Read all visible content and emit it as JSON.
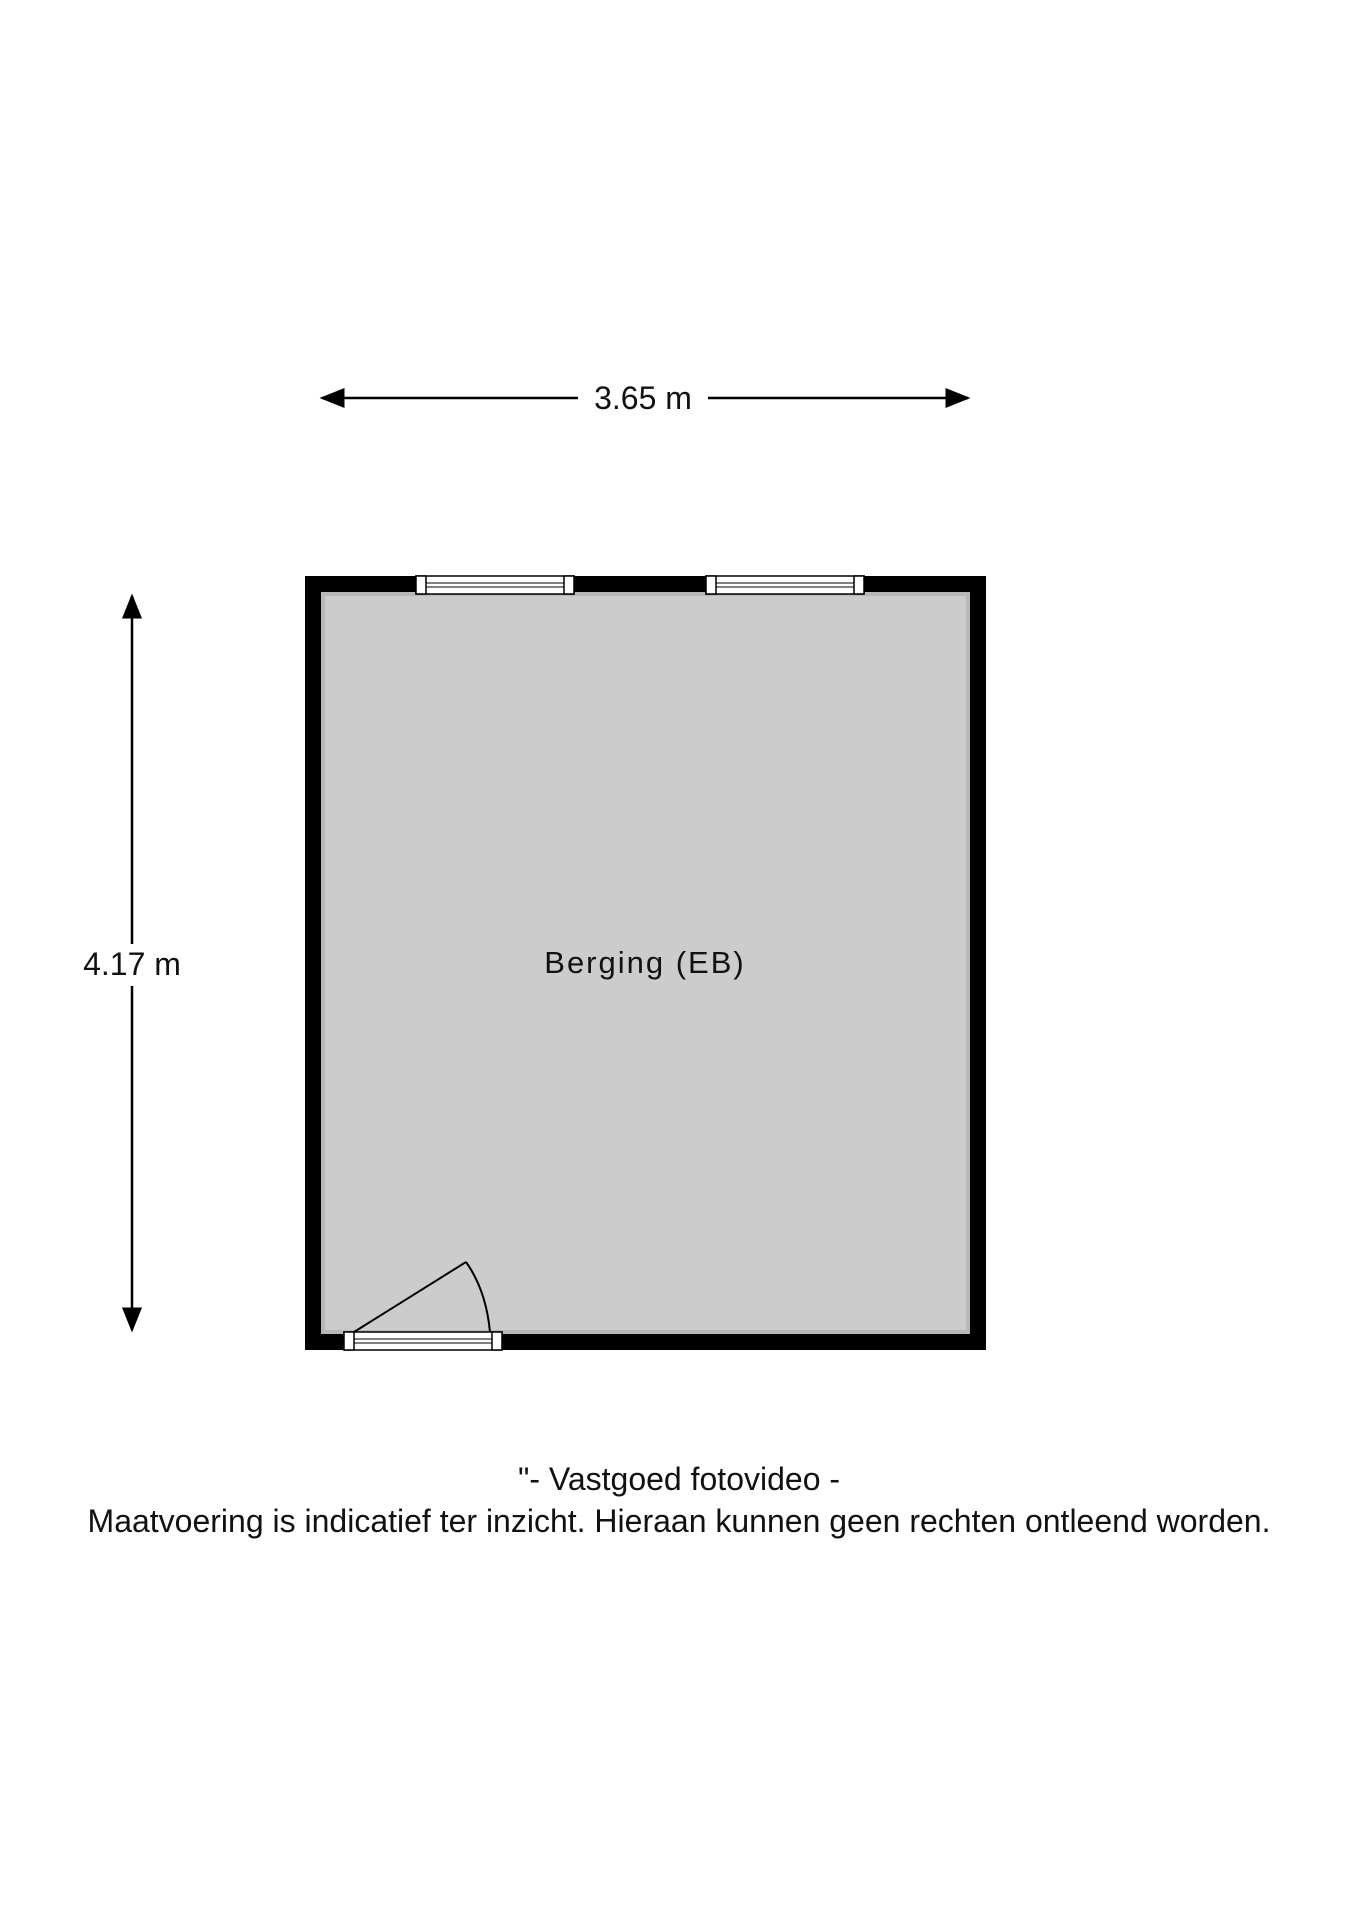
{
  "dimensions": {
    "width_label": "3.65 m",
    "height_label": "4.17 m"
  },
  "room": {
    "name": "Berging (EB)"
  },
  "footer": {
    "credit": "\"- Vastgoed fotovideo -",
    "disclaimer": "Maatvoering is indicatief ter inzicht. Hieraan kunnen geen rechten ontleend worden."
  },
  "colors": {
    "wall": "#000000",
    "floor": "#cccccc",
    "window": "#ffffff"
  }
}
